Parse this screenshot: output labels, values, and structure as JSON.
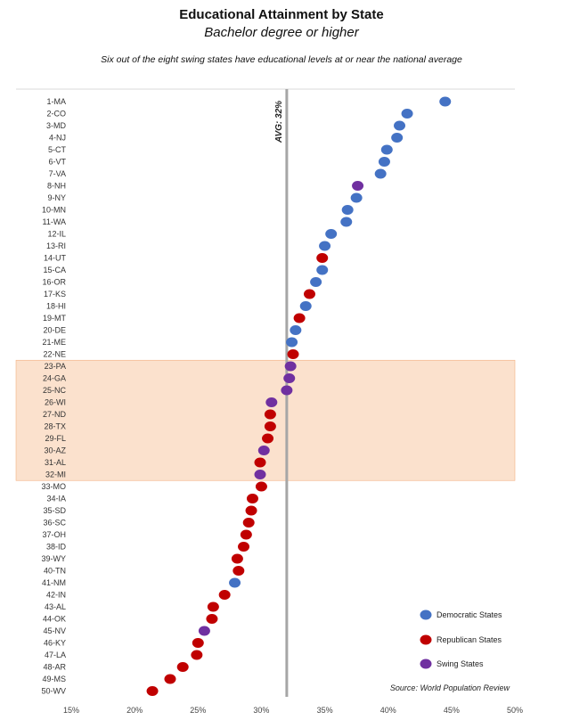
{
  "chart_data": {
    "type": "scatter",
    "title": "Educational Attainment by State",
    "subtitle": "Bachelor degree or higher",
    "annotation": "Six out of the eight swing states have educational levels at or near the national average",
    "average": {
      "label": "AVG: 32%",
      "value": 32
    },
    "x_ticks": [
      "15%",
      "20%",
      "25%",
      "30%",
      "35%",
      "40%",
      "45%",
      "50%"
    ],
    "xlim": [
      15,
      50
    ],
    "highlight_range": [
      "23-PA",
      "32-MI"
    ],
    "source": "Source: World Population Review",
    "legend": [
      {
        "key": "D",
        "label": "Democratic States"
      },
      {
        "key": "R",
        "label": "Republican States"
      },
      {
        "key": "S",
        "label": "Swing States"
      }
    ],
    "colors": {
      "D": "#4472c4",
      "R": "#c00000",
      "S": "#7030a0",
      "highlight": "#fbe1cd",
      "avg_line": "#a6a6a6"
    },
    "points": [
      {
        "label": "1-MA",
        "value": 44.5,
        "group": "D"
      },
      {
        "label": "2-CO",
        "value": 41.5,
        "group": "D"
      },
      {
        "label": "3-MD",
        "value": 40.9,
        "group": "D"
      },
      {
        "label": "4-NJ",
        "value": 40.7,
        "group": "D"
      },
      {
        "label": "5-CT",
        "value": 39.9,
        "group": "D"
      },
      {
        "label": "6-VT",
        "value": 39.7,
        "group": "D"
      },
      {
        "label": "7-VA",
        "value": 39.4,
        "group": "D"
      },
      {
        "label": "8-NH",
        "value": 37.6,
        "group": "S"
      },
      {
        "label": "9-NY",
        "value": 37.5,
        "group": "D"
      },
      {
        "label": "10-MN",
        "value": 36.8,
        "group": "D"
      },
      {
        "label": "11-WA",
        "value": 36.7,
        "group": "D"
      },
      {
        "label": "12-IL",
        "value": 35.5,
        "group": "D"
      },
      {
        "label": "13-RI",
        "value": 35.0,
        "group": "D"
      },
      {
        "label": "14-UT",
        "value": 34.8,
        "group": "R"
      },
      {
        "label": "15-CA",
        "value": 34.8,
        "group": "D"
      },
      {
        "label": "16-OR",
        "value": 34.3,
        "group": "D"
      },
      {
        "label": "17-KS",
        "value": 33.8,
        "group": "R"
      },
      {
        "label": "18-HI",
        "value": 33.5,
        "group": "D"
      },
      {
        "label": "19-MT",
        "value": 33.0,
        "group": "R"
      },
      {
        "label": "20-DE",
        "value": 32.7,
        "group": "D"
      },
      {
        "label": "21-ME",
        "value": 32.4,
        "group": "D"
      },
      {
        "label": "22-NE",
        "value": 32.5,
        "group": "R"
      },
      {
        "label": "23-PA",
        "value": 32.3,
        "group": "S"
      },
      {
        "label": "24-GA",
        "value": 32.2,
        "group": "S"
      },
      {
        "label": "25-NC",
        "value": 32.0,
        "group": "S"
      },
      {
        "label": "26-WI",
        "value": 30.8,
        "group": "S"
      },
      {
        "label": "27-ND",
        "value": 30.7,
        "group": "R"
      },
      {
        "label": "28-TX",
        "value": 30.7,
        "group": "R"
      },
      {
        "label": "29-FL",
        "value": 30.5,
        "group": "R"
      },
      {
        "label": "30-AZ",
        "value": 30.2,
        "group": "S"
      },
      {
        "label": "31-AL",
        "value": 29.9,
        "group": "R"
      },
      {
        "label": "32-MI",
        "value": 29.9,
        "group": "S"
      },
      {
        "label": "33-MO",
        "value": 30.0,
        "group": "R"
      },
      {
        "label": "34-IA",
        "value": 29.3,
        "group": "R"
      },
      {
        "label": "35-SD",
        "value": 29.2,
        "group": "R"
      },
      {
        "label": "36-SC",
        "value": 29.0,
        "group": "R"
      },
      {
        "label": "37-OH",
        "value": 28.8,
        "group": "R"
      },
      {
        "label": "38-ID",
        "value": 28.6,
        "group": "R"
      },
      {
        "label": "39-WY",
        "value": 28.1,
        "group": "R"
      },
      {
        "label": "40-TN",
        "value": 28.2,
        "group": "R"
      },
      {
        "label": "41-NM",
        "value": 27.9,
        "group": "D"
      },
      {
        "label": "42-IN",
        "value": 27.1,
        "group": "R"
      },
      {
        "label": "43-AL",
        "value": 26.2,
        "group": "R"
      },
      {
        "label": "44-OK",
        "value": 26.1,
        "group": "R"
      },
      {
        "label": "45-NV",
        "value": 25.5,
        "group": "S"
      },
      {
        "label": "46-KY",
        "value": 25.0,
        "group": "R"
      },
      {
        "label": "47-LA",
        "value": 24.9,
        "group": "R"
      },
      {
        "label": "48-AR",
        "value": 23.8,
        "group": "R"
      },
      {
        "label": "49-MS",
        "value": 22.8,
        "group": "R"
      },
      {
        "label": "50-WV",
        "value": 21.4,
        "group": "R"
      }
    ]
  }
}
